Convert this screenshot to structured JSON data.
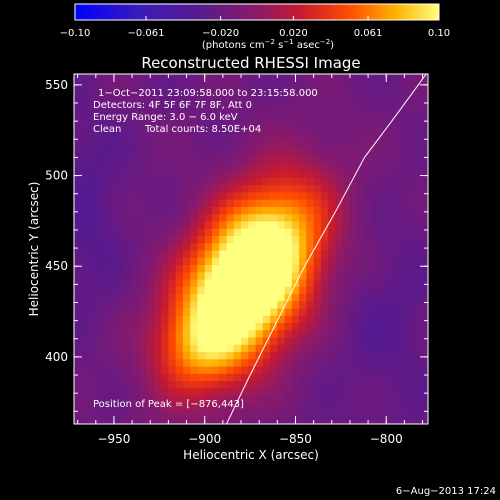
{
  "chart_data": {
    "type": "heatmap",
    "title": "Reconstructed RHESSI Image",
    "xlabel": "Heliocentric X (arcsec)",
    "ylabel": "Heliocentric Y (arcsec)",
    "xlim": [
      -972,
      -777
    ],
    "ylim": [
      363,
      556
    ],
    "xticks": [
      -950,
      -900,
      -850,
      -800
    ],
    "yticks": [
      400,
      450,
      500,
      550
    ],
    "xtick_labels": [
      "−950",
      "−900",
      "−850",
      "−800"
    ],
    "ytick_labels": [
      "400",
      "450",
      "500",
      "550"
    ],
    "colorbar": {
      "range": [
        -0.1,
        0.1
      ],
      "ticks": [
        -0.1,
        -0.061,
        -0.02,
        0.02,
        0.061,
        0.1
      ],
      "tick_labels": [
        "−0.10",
        "−0.061",
        "−0.020",
        "0.020",
        "0.061",
        "0.10"
      ],
      "units_prefix": "(photons cm",
      "units_sup1": "−2",
      "units_mid1": " s",
      "units_sup2": "−1",
      "units_mid2": " asec",
      "units_sup3": "−2",
      "units_suffix": ")"
    },
    "info": {
      "time": "1−Oct−2011 23:09:58.000 to 23:15:58.000",
      "detectors": "Detectors: 4F 5F 6F 7F 8F, Att 0",
      "energy": "Energy Range: 3.0 − 6.0 keV",
      "clean": "Clean",
      "counts": "Total counts: 8.50E+04"
    },
    "peak_label": "Position of Peak = [−876,443]",
    "peak": {
      "x": -876,
      "y": 443,
      "value": 0.1
    },
    "sources": [
      {
        "x": -876,
        "y": 443,
        "sx": 22,
        "sy": 38,
        "amp": 0.18,
        "angle_deg": -30
      },
      {
        "x": -905,
        "y": 405,
        "sx": 16,
        "sy": 16,
        "amp": 0.03,
        "angle_deg": 0
      },
      {
        "x": -965,
        "y": 480,
        "sx": 14,
        "sy": 40,
        "amp": -0.015,
        "angle_deg": 0
      },
      {
        "x": -800,
        "y": 420,
        "sx": 20,
        "sy": 40,
        "amp": -0.012,
        "angle_deg": 0
      }
    ],
    "background": -0.018,
    "limb_curve": [
      [
        -888,
        363
      ],
      [
        -875,
        390
      ],
      [
        -860,
        420
      ],
      [
        -845,
        450
      ],
      [
        -828,
        480
      ],
      [
        -812,
        510
      ],
      [
        -797,
        530
      ],
      [
        -786,
        545
      ],
      [
        -778,
        556
      ]
    ],
    "grid": false
  },
  "footer_timestamp": "6−Aug−2013 17:24"
}
